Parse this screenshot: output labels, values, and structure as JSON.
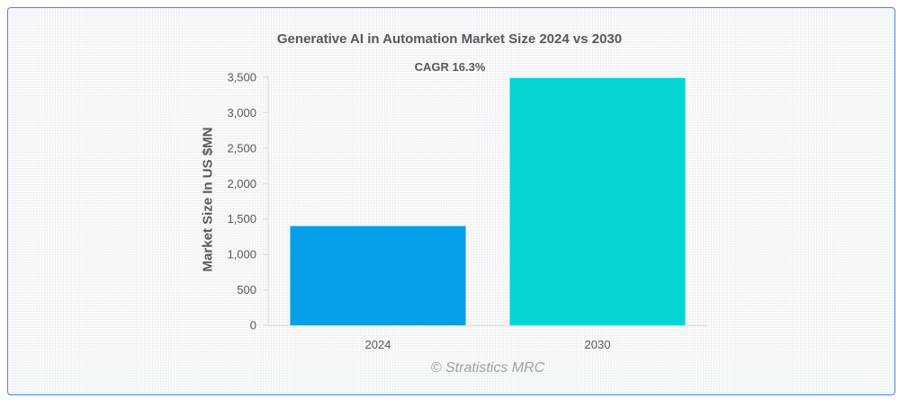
{
  "chart_data": {
    "type": "bar",
    "title": "Generative AI in Automation Market Size 2024 vs 2030",
    "ylabel": "Market Size In US $MN",
    "xlabel": "",
    "categories": [
      "2024",
      "2030"
    ],
    "values": [
      1400,
      3490
    ],
    "ylim": [
      0,
      3500
    ],
    "yticks": [
      0,
      500,
      1000,
      1500,
      2000,
      2500,
      3000,
      3500
    ],
    "ytick_labels": [
      "0",
      "500",
      "1,000",
      "1,500",
      "2,000",
      "2,500",
      "3,000",
      "3,500"
    ],
    "bar_colors": [
      "#039fe8",
      "#03d4d4"
    ],
    "annotation": "CAGR 16.3%",
    "grid": false,
    "legend": "none"
  },
  "watermark": "© Stratistics MRC"
}
